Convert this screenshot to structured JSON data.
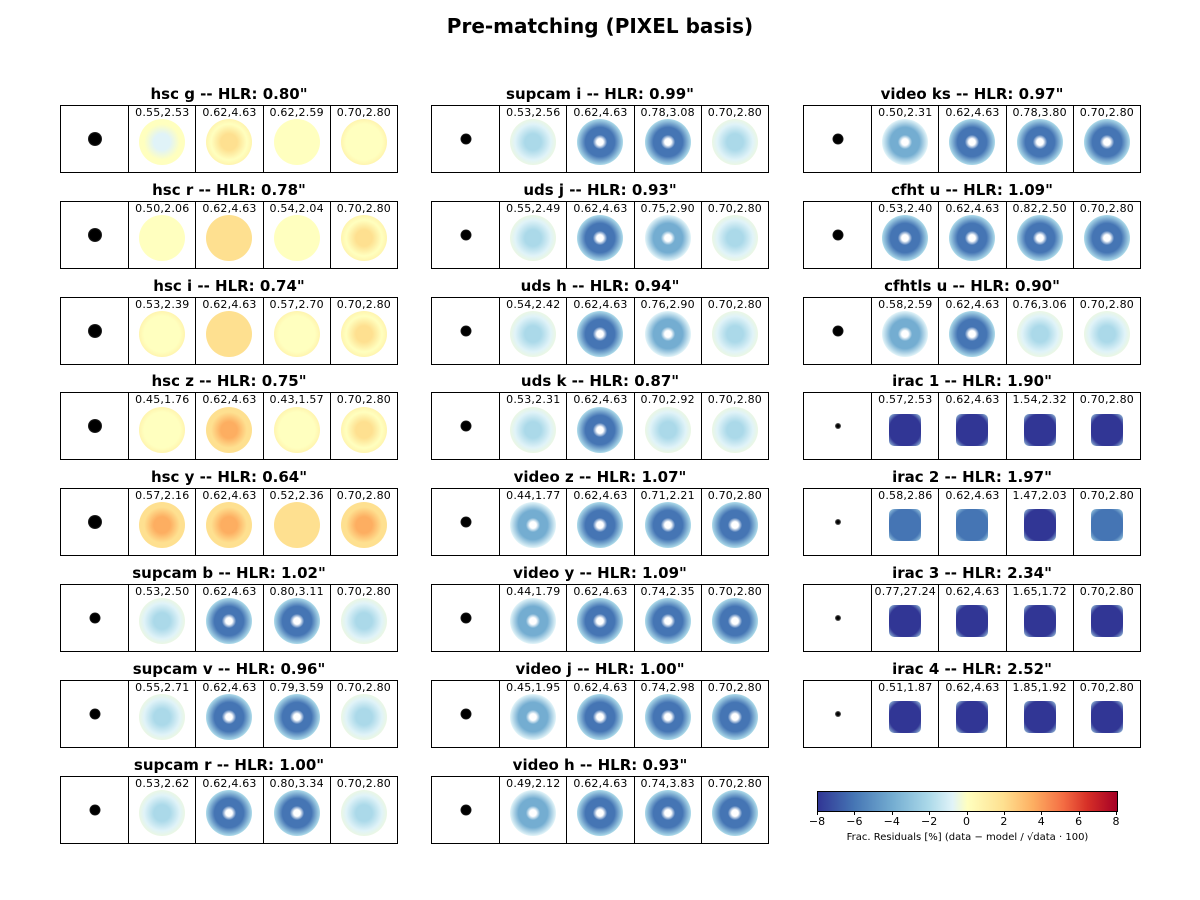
{
  "title": "Pre-matching (PIXEL basis)",
  "colors": {
    "residual_scale": [
      "#313695",
      "#4575b4",
      "#74add1",
      "#abd9e9",
      "#e0f3f8",
      "#ffffbf",
      "#fee090",
      "#fdae61",
      "#f46d43",
      "#d73027",
      "#a50026"
    ],
    "psf": "#000000"
  },
  "chart_data": {
    "type": "heatmap",
    "title": "Pre-matching (PIXEL basis)",
    "panels": [
      {
        "title": "hsc g -- HLR: 0.80\"",
        "cells": [
          "0.55,2.53",
          "0.62,4.63",
          "0.62,2.59",
          "0.70,2.80"
        ],
        "residual": [
          -1.5,
          1.5,
          -0.8,
          0.5
        ]
      },
      {
        "title": "hsc r -- HLR: 0.78\"",
        "cells": [
          "0.50,2.06",
          "0.62,4.63",
          "0.54,2.04",
          "0.70,2.80"
        ],
        "residual": [
          -0.5,
          2.0,
          -0.3,
          1.2
        ]
      },
      {
        "title": "hsc i -- HLR: 0.74\"",
        "cells": [
          "0.53,2.39",
          "0.62,4.63",
          "0.57,2.70",
          "0.70,2.80"
        ],
        "residual": [
          0.3,
          2.0,
          0.3,
          1.5
        ]
      },
      {
        "title": "hsc z -- HLR: 0.75\"",
        "cells": [
          "0.45,1.76",
          "0.62,4.63",
          "0.43,1.57",
          "0.70,2.80"
        ],
        "residual": [
          0.3,
          2.5,
          0.5,
          1.5
        ]
      },
      {
        "title": "hsc y -- HLR: 0.64\"",
        "cells": [
          "0.57,2.16",
          "0.62,4.63",
          "0.52,2.36",
          "0.70,2.80"
        ],
        "residual": [
          2.5,
          2.5,
          2.0,
          3.0
        ]
      },
      {
        "title": "supcam b -- HLR: 1.02\"",
        "cells": [
          "0.53,2.50",
          "0.62,4.63",
          "0.80,3.11",
          "0.70,2.80"
        ],
        "residual": [
          -3.0,
          -6.0,
          -7.0,
          -4.0
        ]
      },
      {
        "title": "supcam v -- HLR: 0.96\"",
        "cells": [
          "0.55,2.71",
          "0.62,4.63",
          "0.79,3.59",
          "0.70,2.80"
        ],
        "residual": [
          -3.0,
          -6.0,
          -7.0,
          -4.0
        ]
      },
      {
        "title": "supcam r -- HLR: 1.00\"",
        "cells": [
          "0.53,2.62",
          "0.62,4.63",
          "0.80,3.34",
          "0.70,2.80"
        ],
        "residual": [
          -3.0,
          -6.0,
          -7.0,
          -4.0
        ]
      },
      {
        "title": "supcam i -- HLR: 0.99\"",
        "cells": [
          "0.53,2.56",
          "0.62,4.63",
          "0.78,3.08",
          "0.70,2.80"
        ],
        "residual": [
          -3.0,
          -7.0,
          -6.0,
          -4.0
        ]
      },
      {
        "title": "uds j -- HLR: 0.93\"",
        "cells": [
          "0.55,2.49",
          "0.62,4.63",
          "0.75,2.90",
          "0.70,2.80"
        ],
        "residual": [
          -4.0,
          -7.0,
          -5.0,
          -3.0
        ]
      },
      {
        "title": "uds h -- HLR: 0.94\"",
        "cells": [
          "0.54,2.42",
          "0.62,4.63",
          "0.76,2.90",
          "0.70,2.80"
        ],
        "residual": [
          -4.0,
          -6.0,
          -5.0,
          -3.0
        ]
      },
      {
        "title": "uds k -- HLR: 0.87\"",
        "cells": [
          "0.53,2.31",
          "0.62,4.63",
          "0.70,2.92",
          "0.70,2.80"
        ],
        "residual": [
          -4.0,
          -6.0,
          -4.0,
          -3.0
        ]
      },
      {
        "title": "video z -- HLR: 1.07\"",
        "cells": [
          "0.44,1.77",
          "0.62,4.63",
          "0.71,2.21",
          "0.70,2.80"
        ],
        "residual": [
          -5.0,
          -7.0,
          -6.0,
          -7.0
        ]
      },
      {
        "title": "video y -- HLR: 1.09\"",
        "cells": [
          "0.44,1.79",
          "0.62,4.63",
          "0.74,2.35",
          "0.70,2.80"
        ],
        "residual": [
          -5.0,
          -7.0,
          -7.0,
          -7.0
        ]
      },
      {
        "title": "video j -- HLR: 1.00\"",
        "cells": [
          "0.45,1.95",
          "0.62,4.63",
          "0.74,2.98",
          "0.70,2.80"
        ],
        "residual": [
          -5.0,
          -7.0,
          -7.0,
          -7.0
        ]
      },
      {
        "title": "video h -- HLR: 0.93\"",
        "cells": [
          "0.49,2.12",
          "0.62,4.63",
          "0.74,3.83",
          "0.70,2.80"
        ],
        "residual": [
          -5.0,
          -7.0,
          -7.0,
          -6.0
        ]
      },
      {
        "title": "video ks -- HLR: 0.97\"",
        "cells": [
          "0.50,2.31",
          "0.62,4.63",
          "0.78,3.80",
          "0.70,2.80"
        ],
        "residual": [
          -5.0,
          -7.0,
          -7.0,
          -6.0
        ]
      },
      {
        "title": "cfht u -- HLR: 1.09\"",
        "cells": [
          "0.53,2.40",
          "0.62,4.63",
          "0.82,2.50",
          "0.70,2.80"
        ],
        "residual": [
          -6.0,
          -7.0,
          -6.0,
          -6.0
        ]
      },
      {
        "title": "cfhtls u -- HLR: 0.90\"",
        "cells": [
          "0.58,2.59",
          "0.62,4.63",
          "0.76,3.06",
          "0.70,2.80"
        ],
        "residual": [
          -5.0,
          -7.0,
          -4.0,
          -3.0
        ]
      },
      {
        "title": "irac 1 -- HLR: 1.90\"",
        "cells": [
          "0.57,2.53",
          "0.62,4.63",
          "1.54,2.32",
          "0.70,2.80"
        ],
        "residual": [
          -8.0,
          -8.0,
          -8.0,
          -8.0
        ]
      },
      {
        "title": "irac 2 -- HLR: 1.97\"",
        "cells": [
          "0.58,2.86",
          "0.62,4.63",
          "1.47,2.03",
          "0.70,2.80"
        ],
        "residual": [
          -7.0,
          -7.0,
          -8.0,
          -7.0
        ]
      },
      {
        "title": "irac 3 -- HLR: 2.34\"",
        "cells": [
          "0.77,27.24",
          "0.62,4.63",
          "1.65,1.72",
          "0.70,2.80"
        ],
        "residual": [
          -8.0,
          -8.0,
          -8.0,
          -8.0
        ]
      },
      {
        "title": "irac 4 -- HLR: 2.52\"",
        "cells": [
          "0.51,1.87",
          "0.62,4.63",
          "1.85,1.92",
          "0.70,2.80"
        ],
        "residual": [
          -8.0,
          -8.0,
          -8.0,
          -8.0
        ]
      }
    ],
    "colorbar": {
      "ticks": [
        "−8",
        "−6",
        "−4",
        "−2",
        "0",
        "2",
        "4",
        "6",
        "8"
      ],
      "range": [
        -8,
        8
      ],
      "label": "Frac. Residuals [%] (data − model / √data · 100)"
    }
  }
}
